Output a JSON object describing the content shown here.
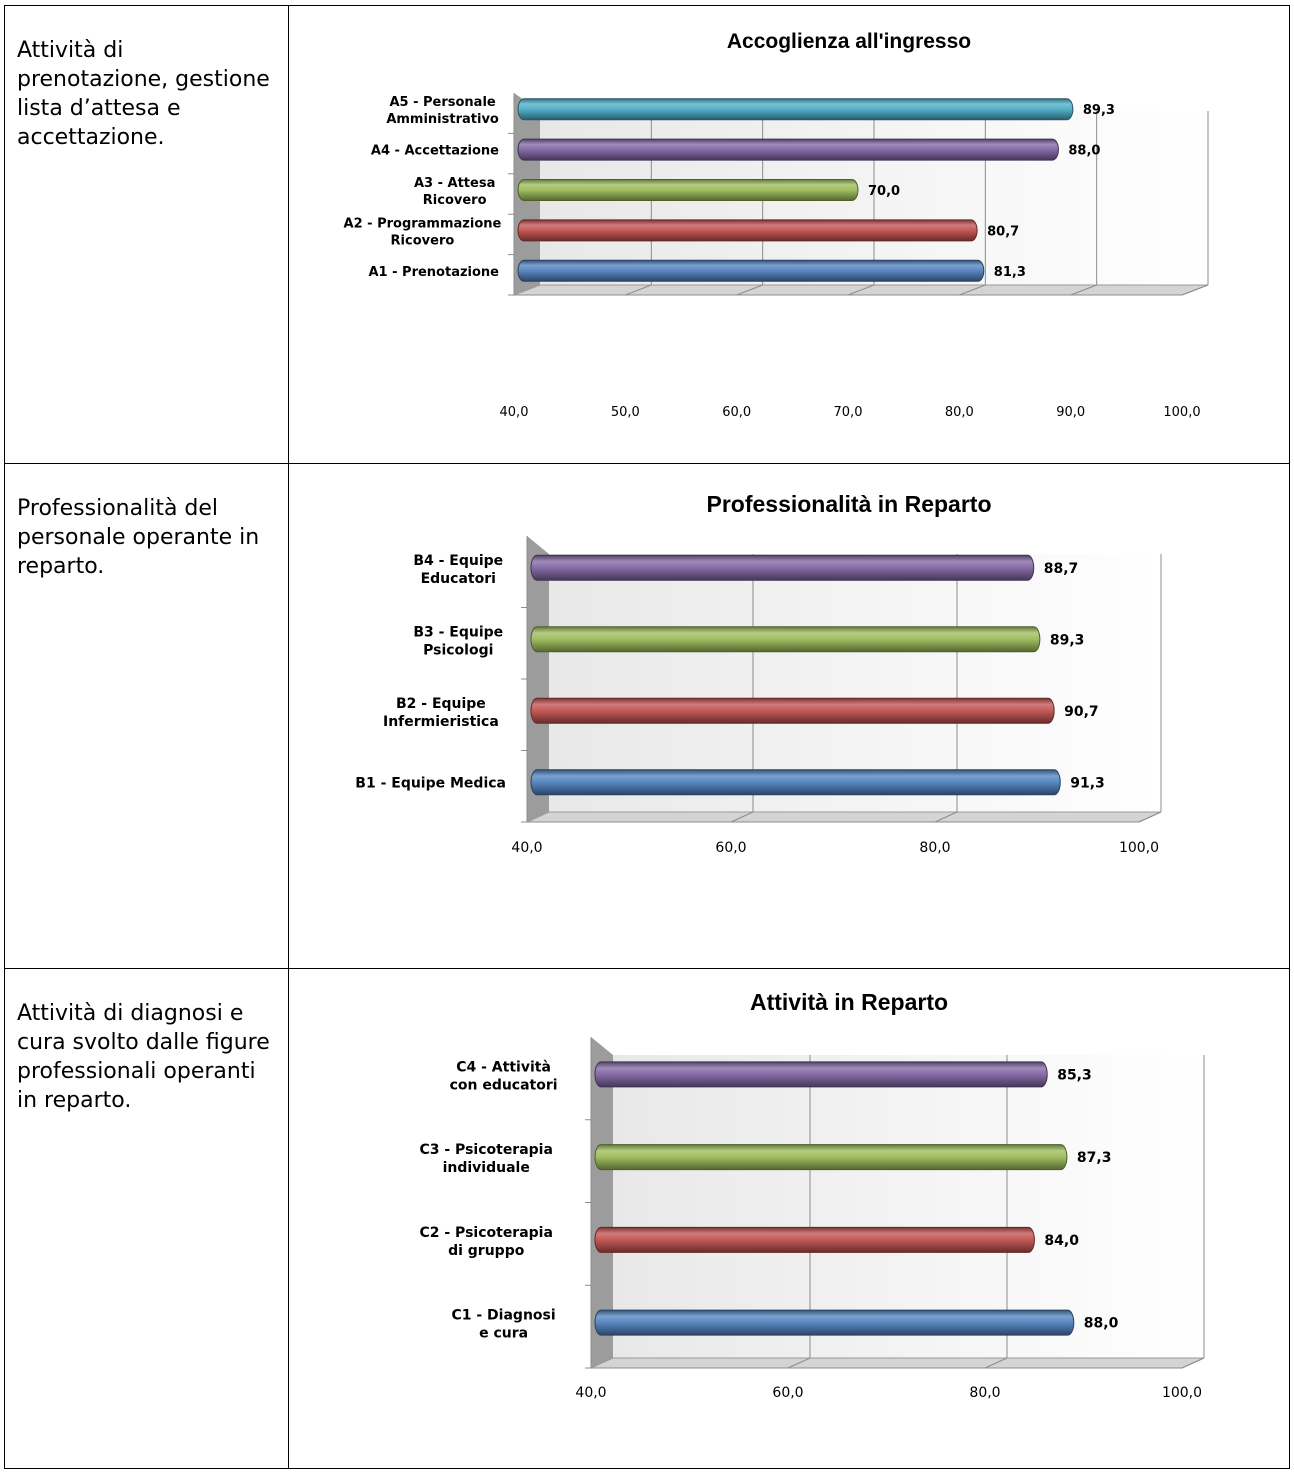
{
  "rows": [
    {
      "description": "Attività di prenotazione, gestione lista d’attesa e accettazione.",
      "chart_index": 0
    },
    {
      "description": "Professionalità del personale operante in reparto.",
      "chart_index": 1
    },
    {
      "description": "Attività di diagnosi e cura svolto dalle figure professionali operanti in reparto.",
      "chart_index": 2
    }
  ],
  "colors": {
    "blue": "#4f81bd",
    "red": "#c0504d",
    "green": "#9bbb59",
    "purple": "#8064a2",
    "cyan": "#4bacc6"
  },
  "chart_data": [
    {
      "type": "bar",
      "orientation": "horizontal",
      "style": "3d-cylinder",
      "title": "Accoglienza all'ingresso",
      "categories": [
        "A1 - Prenotazione",
        "A2 - Programmazione Ricovero",
        "A3 - Attesa Ricovero",
        "A4 - Accettazione",
        "A5 - Personale Amministrativo"
      ],
      "values": [
        81.3,
        80.7,
        70.0,
        88.0,
        89.3
      ],
      "value_labels": [
        "81,3",
        "80,7",
        "70,0",
        "88,0",
        "89,3"
      ],
      "bar_colors": [
        "#4f81bd",
        "#c0504d",
        "#9bbb59",
        "#8064a2",
        "#4bacc6"
      ],
      "xlim": [
        40,
        100
      ],
      "xticks": [
        40,
        50,
        60,
        70,
        80,
        90,
        100
      ],
      "xtick_labels": [
        "40,0",
        "50,0",
        "60,0",
        "70,0",
        "80,0",
        "90,0",
        "100,0"
      ],
      "grid": true,
      "legend": "none"
    },
    {
      "type": "bar",
      "orientation": "horizontal",
      "style": "3d-cylinder",
      "title": "Professionalità in Reparto",
      "categories": [
        "B1 - Equipe Medica",
        "B2 - Equipe Infermieristica",
        "B3 - Equipe Psicologi",
        "B4 - Equipe Educatori"
      ],
      "values": [
        91.3,
        90.7,
        89.3,
        88.7
      ],
      "value_labels": [
        "91,3",
        "90,7",
        "89,3",
        "88,7"
      ],
      "bar_colors": [
        "#4f81bd",
        "#c0504d",
        "#9bbb59",
        "#8064a2"
      ],
      "xlim": [
        40,
        100
      ],
      "xticks": [
        40,
        60,
        80,
        100
      ],
      "xtick_labels": [
        "40,0",
        "60,0",
        "80,0",
        "100,0"
      ],
      "grid": true,
      "legend": "none"
    },
    {
      "type": "bar",
      "orientation": "horizontal",
      "style": "3d-cylinder",
      "title": "Attività in Reparto",
      "categories": [
        "C1 - Diagnosi e cura",
        "C2 - Psicoterapia di gruppo",
        "C3 - Psicoterapia individuale",
        "C4 - Attività con educatori"
      ],
      "values": [
        88.0,
        84.0,
        87.3,
        85.3
      ],
      "value_labels": [
        "88,0",
        "84,0",
        "87,3",
        "85,3"
      ],
      "bar_colors": [
        "#4f81bd",
        "#c0504d",
        "#9bbb59",
        "#8064a2"
      ],
      "xlim": [
        40,
        100
      ],
      "xticks": [
        40,
        60,
        80,
        100
      ],
      "xtick_labels": [
        "40,0",
        "60,0",
        "80,0",
        "100,0"
      ],
      "grid": true,
      "legend": "none"
    }
  ]
}
